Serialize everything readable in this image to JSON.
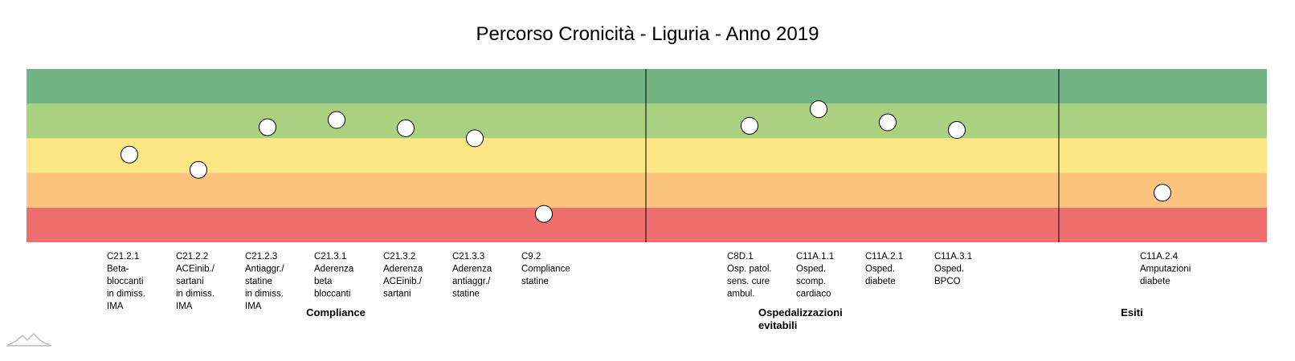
{
  "chart_data": {
    "type": "scatter",
    "title": "Percorso Cronicità - Liguria - Anno 2019",
    "ylim": [
      0,
      5
    ],
    "bands": [
      {
        "from": 4,
        "to": 5,
        "color": "#72b386"
      },
      {
        "from": 3,
        "to": 4,
        "color": "#a9d17f"
      },
      {
        "from": 2,
        "to": 3,
        "color": "#fde784"
      },
      {
        "from": 1,
        "to": 2,
        "color": "#fdc47e"
      },
      {
        "from": 0,
        "to": 1,
        "color": "#ef6f6f"
      }
    ],
    "groups": [
      {
        "label_lines": [
          "Compliance"
        ],
        "indicators": [
          {
            "label_lines": [
              "C21.2.1",
              "Beta-",
              "bloccanti",
              "in dimiss.",
              "IMA"
            ],
            "value": 2.53
          },
          {
            "label_lines": [
              "C21.2.2",
              "ACEinib./",
              "sartani",
              "in dimiss.",
              "IMA"
            ],
            "value": 2.09
          },
          {
            "label_lines": [
              "C21.2.3",
              "Antiaggr./",
              "statine",
              "in dimiss.",
              "IMA"
            ],
            "value": 3.32
          },
          {
            "label_lines": [
              "C21.3.1",
              "Aderenza",
              "beta",
              "bloccanti"
            ],
            "value": 3.53
          },
          {
            "label_lines": [
              "C21.3.2",
              "Aderenza",
              "ACEinib./",
              "sartani"
            ],
            "value": 3.29
          },
          {
            "label_lines": [
              "C21.3.3",
              "Aderenza",
              "antiaggr./",
              "statine"
            ],
            "value": 3.0
          },
          {
            "label_lines": [
              "C9.2",
              "Compliance",
              "statine"
            ],
            "value": 0.82
          }
        ]
      },
      {
        "label_lines": [
          "Ospedalizzazioni",
          "evitabili"
        ],
        "indicators": [
          {
            "label_lines": [
              "C8D.1",
              "Osp. patol.",
              "sens. cure",
              "ambul."
            ],
            "value": 3.36
          },
          {
            "label_lines": [
              "C11A.1.1",
              "Osped.",
              "scomp.",
              "cardiaco"
            ],
            "value": 3.84
          },
          {
            "label_lines": [
              "C11A.2.1",
              "Osped.",
              "diabete"
            ],
            "value": 3.46
          },
          {
            "label_lines": [
              "C11A.3.1",
              "Osped.",
              "BPCO"
            ],
            "value": 3.24
          }
        ]
      },
      {
        "label_lines": [
          "Esiti"
        ],
        "indicators": [
          {
            "label_lines": [
              "C11A.2.4",
              "Amputazioni",
              "diabete"
            ],
            "value": 1.43
          }
        ]
      }
    ]
  },
  "style": {
    "divider_color": "#000000",
    "marker_fill": "#ffffff",
    "marker_stroke": "#000000",
    "logo_color": "#bbbbbb"
  }
}
